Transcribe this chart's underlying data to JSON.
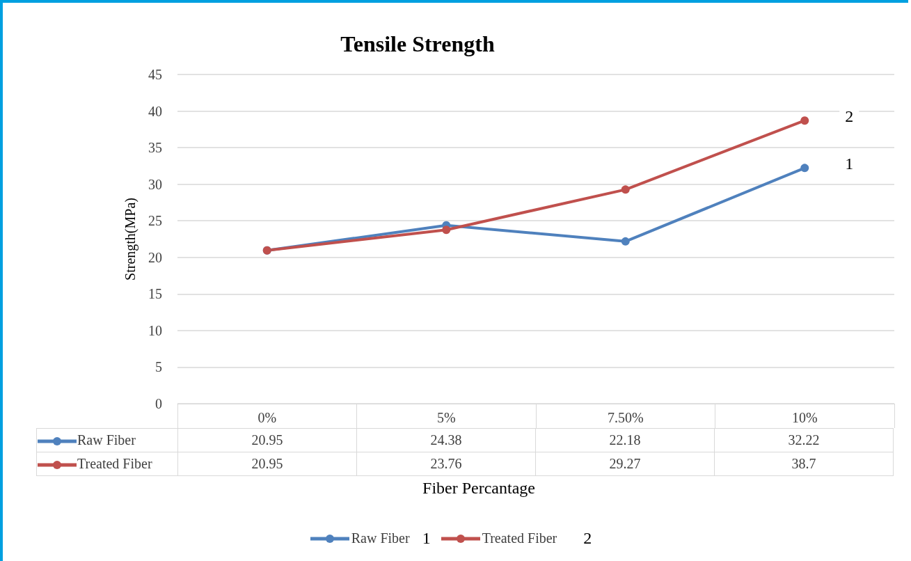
{
  "chart_data": {
    "type": "line",
    "title": "Tensile Strength",
    "xlabel": "Fiber Percantage",
    "ylabel": "Strength(MPa)",
    "categories": [
      "0%",
      "5%",
      "7.50%",
      "10%"
    ],
    "series": [
      {
        "name": "Raw Fiber",
        "color": "#4f81bd",
        "values": [
          20.95,
          24.38,
          22.18,
          32.22
        ]
      },
      {
        "name": "Treated Fiber",
        "color": "#c0504d",
        "values": [
          20.95,
          23.76,
          29.27,
          38.7
        ]
      }
    ],
    "ylim": [
      0,
      45
    ],
    "yticks": [
      0,
      5,
      10,
      15,
      20,
      25,
      30,
      35,
      40,
      45
    ],
    "grid": "y",
    "legend": "bottom",
    "marker": "circle",
    "line_style": "solid",
    "data_labels": true,
    "annotations": [
      {
        "text": "1",
        "x": "10%",
        "y": 32.22
      },
      {
        "text": "2",
        "x": "10%",
        "y": 38.7
      },
      "1",
      "2"
    ]
  }
}
